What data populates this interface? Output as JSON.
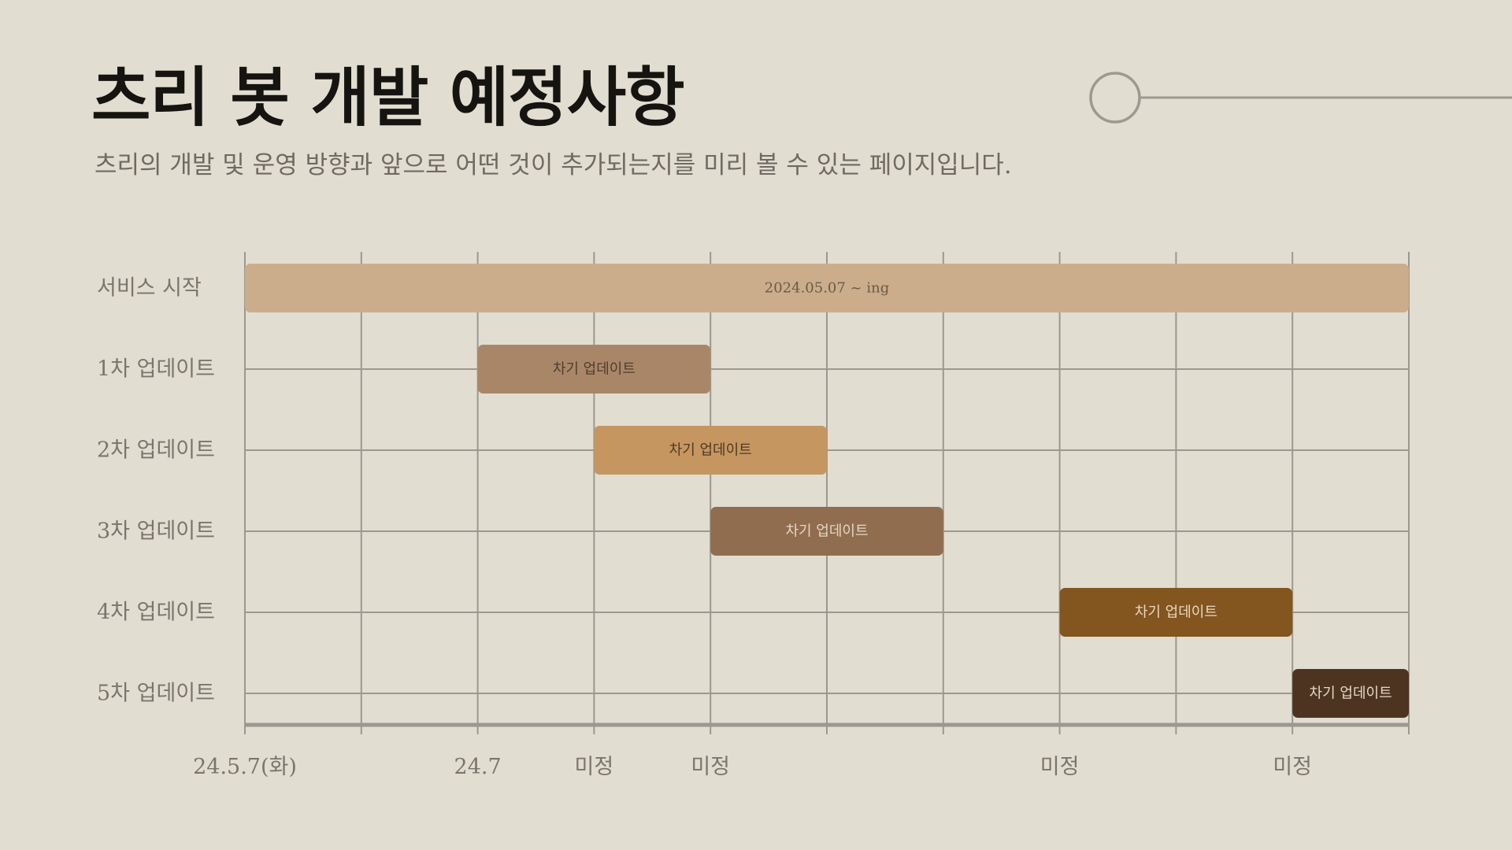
{
  "header": {
    "title": "츠리 봇 개발 예정사항",
    "subtitle": "츠리의 개발 및 운영 방향과 앞으로 어떤 것이 추가되는지를 미리 볼 수 있는 페이지입니다."
  },
  "colors": {
    "background": "#e2ddd1",
    "grid": "#9a9990",
    "label": "#7a756d"
  },
  "chart_data": {
    "type": "gantt",
    "grid_columns": 10,
    "grid": true,
    "rows": [
      {
        "label": "서비스 시작",
        "bar_label": "2024.05.07 ~ ing",
        "start": 0,
        "end": 10,
        "color": "#cbad8b",
        "text_color": "#6b5a45"
      },
      {
        "label": "1차 업데이트",
        "bar_label": "차기 업데이트",
        "start": 2,
        "end": 4,
        "color": "#aa8669",
        "text_color": "#4f3d2c"
      },
      {
        "label": "2차 업데이트",
        "bar_label": "차기 업데이트",
        "start": 3,
        "end": 5,
        "color": "#c69660",
        "text_color": "#4f3a22"
      },
      {
        "label": "3차 업데이트",
        "bar_label": "차기 업데이트",
        "start": 4,
        "end": 6,
        "color": "#916d4f",
        "text_color": "#e4d6c4"
      },
      {
        "label": "4차 업데이트",
        "bar_label": "차기 업데이트",
        "start": 7,
        "end": 9,
        "color": "#83551f",
        "text_color": "#e8d8c1"
      },
      {
        "label": "5차 업데이트",
        "bar_label": "차기 업데이트",
        "start": 9,
        "end": 10,
        "color": "#4d3421",
        "text_color": "#e6d7c6"
      }
    ],
    "tick_labels": [
      {
        "label": "24.5.7(화)",
        "at": 0
      },
      {
        "label": "24.7",
        "at": 2
      },
      {
        "label": "미정",
        "at": 3
      },
      {
        "label": "미정",
        "at": 4
      },
      {
        "label": "미정",
        "at": 7
      },
      {
        "label": "미정",
        "at": 9
      }
    ]
  }
}
